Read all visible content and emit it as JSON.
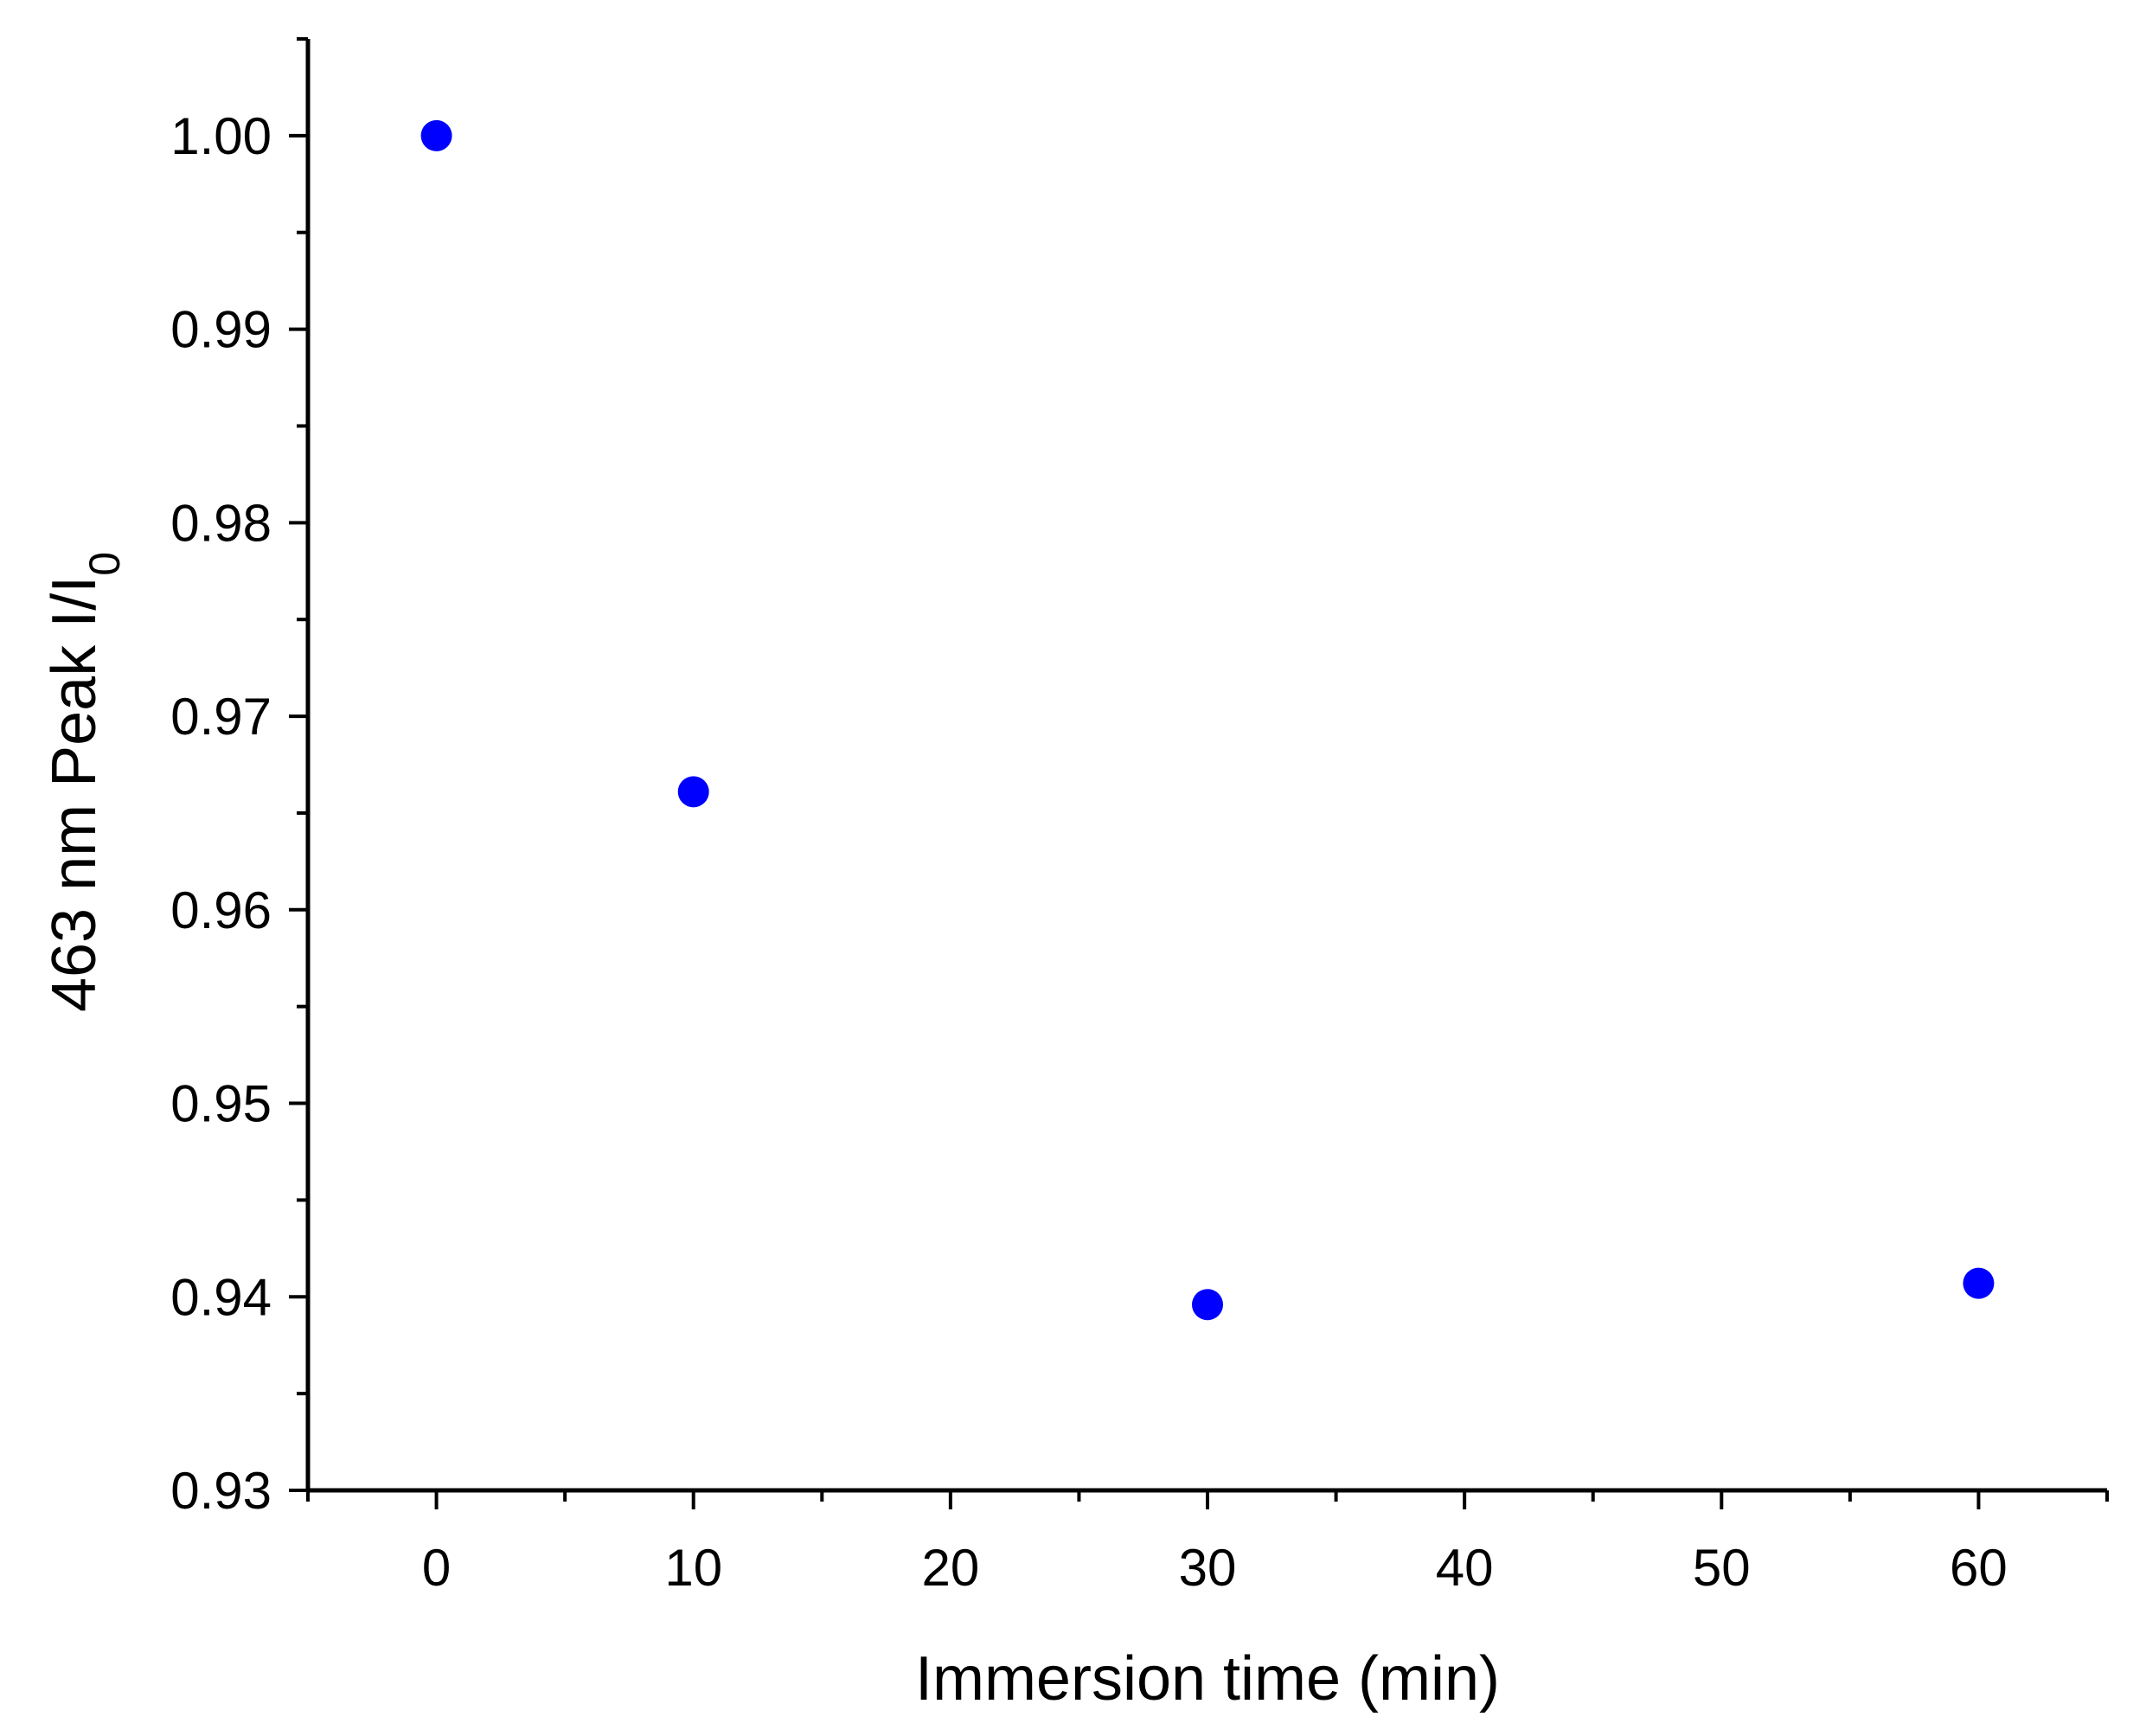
{
  "chart_data": {
    "type": "scatter",
    "title": "",
    "xlabel": "Immersion time (min)",
    "ylabel": {
      "main": "463 nm Peak I/I",
      "subscript": "0"
    },
    "xlim": [
      -5,
      65
    ],
    "ylim": [
      0.93,
      1.005
    ],
    "xticks": [
      0,
      10,
      20,
      30,
      40,
      50,
      60
    ],
    "xtick_labels": [
      "0",
      "10",
      "20",
      "30",
      "40",
      "50",
      "60"
    ],
    "xminor_step": 5,
    "yticks": [
      0.93,
      0.94,
      0.95,
      0.96,
      0.97,
      0.98,
      0.99,
      1.0
    ],
    "ytick_labels": [
      "0.93",
      "0.94",
      "0.95",
      "0.96",
      "0.97",
      "0.98",
      "0.99",
      "1.00"
    ],
    "yminor_step": 0.005,
    "grid": false,
    "series": [
      {
        "color": "#0000ff",
        "marker": "circle",
        "x": [
          0,
          10,
          30,
          60
        ],
        "y": [
          1.0,
          0.9661,
          0.9396,
          0.9407
        ]
      }
    ]
  }
}
